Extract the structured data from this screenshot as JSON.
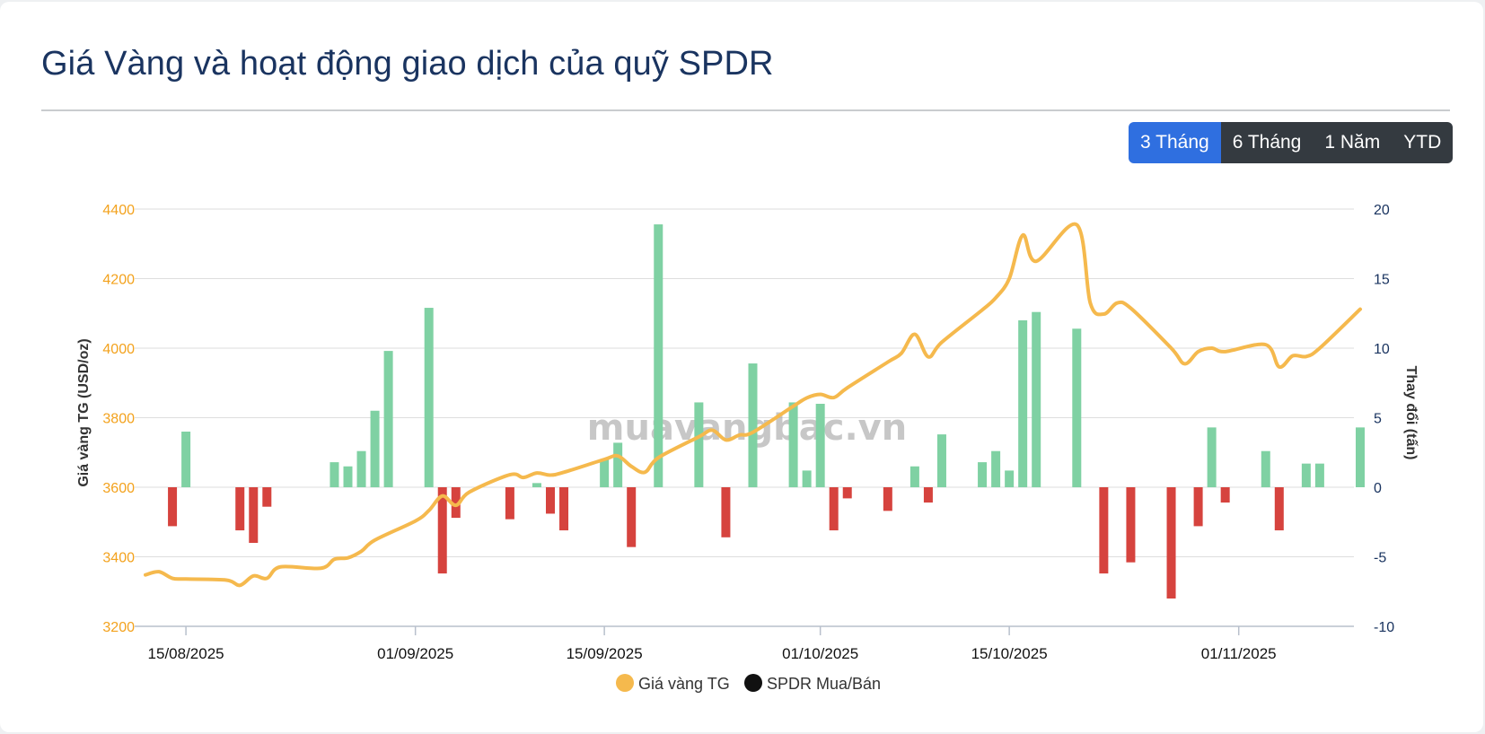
{
  "page": {
    "title": "Giá Vàng và hoạt động giao dịch của quỹ SPDR"
  },
  "range_buttons": {
    "active": "3 Tháng",
    "items": [
      "3 Tháng",
      "6 Tháng",
      "1 Năm",
      "YTD"
    ]
  },
  "watermark": "muavangbac.vn",
  "colors": {
    "gold_line": "#f5b94d",
    "buy_bar": "#7fd1a3",
    "sell_bar": "#d6433e",
    "left_axis_text": "#f3a21d",
    "right_axis_text": "#1a3460",
    "active_button": "#2f6fe0",
    "inactive_button": "#343a40",
    "title": "#1a3460"
  },
  "chart_data": {
    "type": "bar+line",
    "title": "",
    "x_ticks": [
      "15/08/2025",
      "01/09/2025",
      "15/09/2025",
      "01/10/2025",
      "15/10/2025",
      "01/11/2025"
    ],
    "y_left": {
      "label": "Giá vàng TG (USD/oz)",
      "ticks": [
        3200,
        3400,
        3600,
        3800,
        4000,
        4200,
        4400
      ],
      "range": [
        3200,
        4400
      ]
    },
    "y_right": {
      "label": "Thay đổi (tấn)",
      "ticks": [
        -10,
        -5,
        0,
        5,
        10,
        15,
        20
      ],
      "range": [
        -10,
        20
      ]
    },
    "legend": {
      "position": "bottom",
      "items": [
        {
          "name": "Giá vàng TG",
          "color": "#f5b94d"
        },
        {
          "name": "SPDR Mua/Bán",
          "color": "#111111"
        }
      ]
    },
    "series": [
      {
        "name": "Giá vàng TG",
        "kind": "line",
        "axis": "left",
        "points": [
          [
            "2025-08-12",
            3348
          ],
          [
            "2025-08-13",
            3357
          ],
          [
            "2025-08-14",
            3338
          ],
          [
            "2025-08-15",
            3336
          ],
          [
            "2025-08-18",
            3333
          ],
          [
            "2025-08-19",
            3318
          ],
          [
            "2025-08-20",
            3345
          ],
          [
            "2025-08-21",
            3338
          ],
          [
            "2025-08-22",
            3371
          ],
          [
            "2025-08-25",
            3367
          ],
          [
            "2025-08-26",
            3393
          ],
          [
            "2025-08-27",
            3397
          ],
          [
            "2025-08-28",
            3416
          ],
          [
            "2025-08-29",
            3448
          ],
          [
            "2025-09-01",
            3503
          ],
          [
            "2025-09-02",
            3533
          ],
          [
            "2025-09-03",
            3575
          ],
          [
            "2025-09-04",
            3548
          ],
          [
            "2025-09-05",
            3586
          ],
          [
            "2025-09-08",
            3636
          ],
          [
            "2025-09-09",
            3628
          ],
          [
            "2025-09-10",
            3641
          ],
          [
            "2025-09-11",
            3635
          ],
          [
            "2025-09-12",
            3643
          ],
          [
            "2025-09-15",
            3680
          ],
          [
            "2025-09-16",
            3690
          ],
          [
            "2025-09-17",
            3660
          ],
          [
            "2025-09-18",
            3643
          ],
          [
            "2025-09-19",
            3685
          ],
          [
            "2025-09-22",
            3745
          ],
          [
            "2025-09-23",
            3764
          ],
          [
            "2025-09-24",
            3736
          ],
          [
            "2025-09-25",
            3750
          ],
          [
            "2025-09-26",
            3758
          ],
          [
            "2025-09-29",
            3833
          ],
          [
            "2025-09-30",
            3857
          ],
          [
            "2025-10-01",
            3867
          ],
          [
            "2025-10-02",
            3858
          ],
          [
            "2025-10-03",
            3886
          ],
          [
            "2025-10-06",
            3960
          ],
          [
            "2025-10-07",
            3985
          ],
          [
            "2025-10-08",
            4040
          ],
          [
            "2025-10-09",
            3975
          ],
          [
            "2025-10-10",
            4017
          ],
          [
            "2025-10-13",
            4110
          ],
          [
            "2025-10-14",
            4145
          ],
          [
            "2025-10-15",
            4200
          ],
          [
            "2025-10-16",
            4325
          ],
          [
            "2025-10-17",
            4250
          ],
          [
            "2025-10-20",
            4355
          ],
          [
            "2025-10-21",
            4130
          ],
          [
            "2025-10-22",
            4098
          ],
          [
            "2025-10-23",
            4130
          ],
          [
            "2025-10-24",
            4115
          ],
          [
            "2025-10-27",
            4000
          ],
          [
            "2025-10-28",
            3955
          ],
          [
            "2025-10-29",
            3990
          ],
          [
            "2025-10-30",
            4000
          ],
          [
            "2025-10-31",
            3990
          ],
          [
            "2025-11-03",
            4010
          ],
          [
            "2025-11-04",
            3946
          ],
          [
            "2025-11-05",
            3978
          ],
          [
            "2025-11-06",
            3976
          ],
          [
            "2025-11-07",
            4000
          ],
          [
            "2025-11-10",
            4112
          ]
        ]
      },
      {
        "name": "SPDR Mua/Bán",
        "kind": "bar",
        "axis": "right",
        "points": [
          [
            "2025-08-14",
            -2.8
          ],
          [
            "2025-08-15",
            4.0
          ],
          [
            "2025-08-19",
            -3.1
          ],
          [
            "2025-08-20",
            -4.0
          ],
          [
            "2025-08-21",
            -1.4
          ],
          [
            "2025-08-26",
            1.8
          ],
          [
            "2025-08-27",
            1.5
          ],
          [
            "2025-08-28",
            2.6
          ],
          [
            "2025-08-29",
            5.5
          ],
          [
            "2025-08-30",
            9.8
          ],
          [
            "2025-09-02",
            12.9
          ],
          [
            "2025-09-03",
            -6.2
          ],
          [
            "2025-09-04",
            -2.2
          ],
          [
            "2025-09-08",
            -2.3
          ],
          [
            "2025-09-10",
            0.3
          ],
          [
            "2025-09-11",
            -1.9
          ],
          [
            "2025-09-12",
            -3.1
          ],
          [
            "2025-09-15",
            2.0
          ],
          [
            "2025-09-16",
            3.2
          ],
          [
            "2025-09-17",
            -4.3
          ],
          [
            "2025-09-19",
            18.9
          ],
          [
            "2025-09-22",
            6.1
          ],
          [
            "2025-09-24",
            -3.6
          ],
          [
            "2025-09-26",
            8.9
          ],
          [
            "2025-09-29",
            6.1
          ],
          [
            "2025-09-30",
            1.2
          ],
          [
            "2025-10-01",
            6.0
          ],
          [
            "2025-10-02",
            -3.1
          ],
          [
            "2025-10-03",
            -0.8
          ],
          [
            "2025-10-06",
            -1.7
          ],
          [
            "2025-10-08",
            1.5
          ],
          [
            "2025-10-09",
            -1.1
          ],
          [
            "2025-10-10",
            3.8
          ],
          [
            "2025-10-13",
            1.8
          ],
          [
            "2025-10-14",
            2.6
          ],
          [
            "2025-10-15",
            1.2
          ],
          [
            "2025-10-16",
            12.0
          ],
          [
            "2025-10-17",
            12.6
          ],
          [
            "2025-10-20",
            11.4
          ],
          [
            "2025-10-22",
            -6.2
          ],
          [
            "2025-10-24",
            -5.4
          ],
          [
            "2025-10-27",
            -8.0
          ],
          [
            "2025-10-29",
            -2.8
          ],
          [
            "2025-10-30",
            4.3
          ],
          [
            "2025-10-31",
            -1.1
          ],
          [
            "2025-11-03",
            2.6
          ],
          [
            "2025-11-04",
            -3.1
          ],
          [
            "2025-11-06",
            1.7
          ],
          [
            "2025-11-07",
            1.7
          ],
          [
            "2025-11-10",
            4.3
          ]
        ]
      }
    ]
  }
}
